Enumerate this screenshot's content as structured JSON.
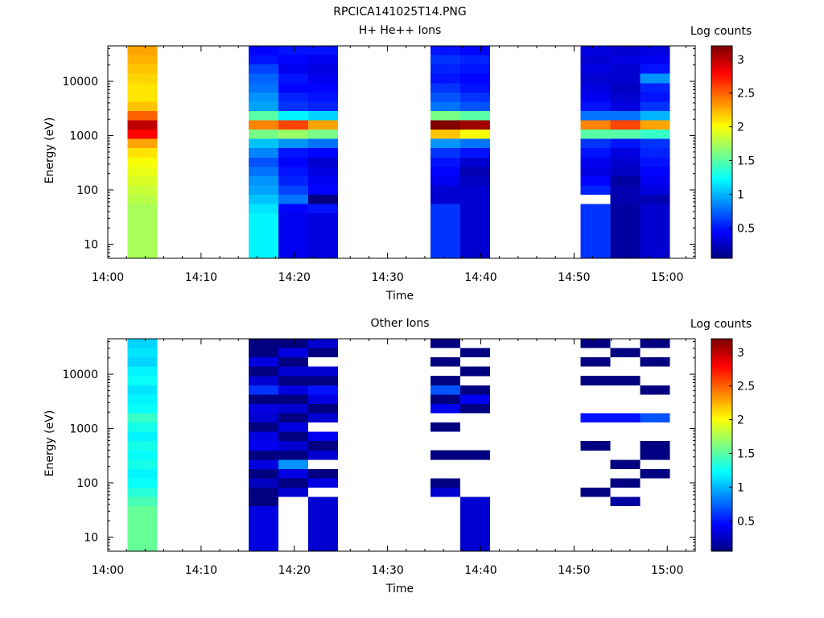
{
  "figure_title": "RPCICA141025T14.PNG",
  "chart_data": [
    {
      "type": "heatmap",
      "title": "H+ He++ Ions",
      "xlabel": "Time",
      "ylabel": "Energy (eV)",
      "x_ticks": [
        "14:00",
        "14:10",
        "14:20",
        "14:30",
        "14:40",
        "14:50",
        "15:00"
      ],
      "x_range_minutes": [
        0,
        63
      ],
      "y_scale": "log",
      "y_ticks": [
        "10",
        "100",
        "1000",
        "10000"
      ],
      "y_range": [
        5.5,
        45000
      ],
      "colorbar": {
        "label": "Log counts",
        "range": [
          0.05,
          3.2
        ],
        "ticks": [
          "0.5",
          "1",
          "1.5",
          "2",
          "2.5",
          "3"
        ]
      },
      "columns": [
        {
          "t_start": 2.1,
          "t_end": 5.3,
          "profile": [
            1.75,
            1.75,
            1.8,
            1.85,
            1.9,
            1.95,
            2.0,
            2.1,
            2.3,
            2.8,
            3.0,
            2.5,
            2.2,
            2.1,
            2.1,
            2.15,
            2.2,
            2.25,
            2.3
          ]
        },
        {
          "t_start": 15.1,
          "t_end": 18.3,
          "profile": [
            1.2,
            1.15,
            1.05,
            0.95,
            0.9,
            0.8,
            0.7,
            0.85,
            1.05,
            1.6,
            2.4,
            1.5,
            0.95,
            0.9,
            0.8,
            0.75,
            0.65,
            0.5,
            0.45
          ]
        },
        {
          "t_start": 18.3,
          "t_end": 21.5,
          "profile": [
            0.4,
            0.45,
            0.8,
            0.65,
            0.55,
            0.5,
            0.45,
            0.5,
            0.9,
            1.7,
            2.6,
            1.2,
            0.6,
            0.55,
            0.45,
            0.5,
            0.4,
            0.45,
            0.5
          ]
        },
        {
          "t_start": 21.5,
          "t_end": 24.7,
          "profile": [
            0.35,
            0.5,
            0.05,
            0.45,
            0.4,
            0.35,
            0.3,
            0.45,
            0.8,
            1.6,
            2.3,
            1.1,
            0.55,
            0.5,
            0.45,
            0.4,
            0.35,
            0.4,
            0.5
          ]
        },
        {
          "t_start": 34.6,
          "t_end": 37.8,
          "profile": [
            0.6,
            0.6,
            0.3,
            0.3,
            0.4,
            0.45,
            0.5,
            0.6,
            0.9,
            2.2,
            3.2,
            1.6,
            0.8,
            0.7,
            0.6,
            0.5,
            0.55,
            0.6,
            0.5
          ]
        },
        {
          "t_start": 37.8,
          "t_end": 41.0,
          "profile": [
            0.3,
            0.3,
            0.3,
            0.3,
            0.25,
            0.2,
            0.3,
            0.5,
            0.8,
            2.0,
            3.1,
            1.5,
            0.7,
            0.6,
            0.5,
            0.45,
            0.5,
            0.55,
            0.45
          ]
        },
        {
          "t_start": 50.7,
          "t_end": 53.9,
          "profile": [
            0.6,
            0.6,
            -1,
            0.55,
            0.45,
            0.35,
            0.4,
            0.5,
            0.6,
            1.5,
            2.4,
            0.8,
            0.5,
            0.4,
            0.35,
            0.3,
            0.35,
            0.3,
            0.35
          ]
        },
        {
          "t_start": 53.9,
          "t_end": 57.1,
          "profile": [
            0.15,
            0.15,
            0.2,
            0.2,
            0.15,
            0.25,
            0.3,
            0.35,
            0.5,
            1.5,
            2.6,
            0.8,
            0.35,
            0.3,
            0.25,
            0.3,
            0.3,
            0.35,
            0.3
          ]
        },
        {
          "t_start": 57.1,
          "t_end": 60.3,
          "profile": [
            0.3,
            0.3,
            0.2,
            0.35,
            0.4,
            0.45,
            0.5,
            0.55,
            0.6,
            1.4,
            2.3,
            1.0,
            0.6,
            0.5,
            0.55,
            0.9,
            0.5,
            0.4,
            0.35
          ]
        }
      ]
    },
    {
      "type": "heatmap",
      "title": "Other Ions",
      "xlabel": "Time",
      "ylabel": "Energy (eV)",
      "x_ticks": [
        "14:00",
        "14:10",
        "14:20",
        "14:30",
        "14:40",
        "14:50",
        "15:00"
      ],
      "x_range_minutes": [
        0,
        63
      ],
      "y_scale": "log",
      "y_ticks": [
        "10",
        "100",
        "1000",
        "10000"
      ],
      "y_range": [
        5.5,
        45000
      ],
      "colorbar": {
        "label": "Log counts",
        "range": [
          0.05,
          3.2
        ],
        "ticks": [
          "0.5",
          "1",
          "1.5",
          "2",
          "2.5",
          "3"
        ]
      },
      "columns": [
        {
          "t_start": 2.1,
          "t_end": 5.3,
          "profile": [
            1.55,
            1.45,
            1.35,
            1.25,
            1.2,
            1.3,
            1.25,
            1.3,
            1.2,
            1.3,
            1.4,
            1.25,
            1.2,
            1.15,
            1.25,
            1.2,
            1.1,
            1.15,
            1.1
          ]
        },
        {
          "t_start": 15.1,
          "t_end": 18.3,
          "profile": [
            0.35,
            0.05,
            0.05,
            0.25,
            0.05,
            0.35,
            0.05,
            0.4,
            0.35,
            0.05,
            0.3,
            0.35,
            0.05,
            0.6,
            0.3,
            0.05,
            0.35,
            0.05,
            0.05
          ]
        },
        {
          "t_start": 18.3,
          "t_end": 21.5,
          "profile": [
            -1,
            -1,
            0.3,
            0.05,
            0.35,
            0.9,
            0.05,
            0.3,
            0.05,
            0.35,
            0.05,
            0.3,
            0.05,
            0.35,
            0.05,
            0.3,
            0.05,
            0.35,
            0.05
          ]
        },
        {
          "t_start": 21.5,
          "t_end": 24.7,
          "profile": [
            0.3,
            0.3,
            -1,
            0.35,
            0.05,
            -1,
            0.3,
            0.05,
            0.4,
            -1,
            0.3,
            0.05,
            0.35,
            0.5,
            0.05,
            0.3,
            -1,
            0.05,
            0.3
          ]
        },
        {
          "t_start": 34.6,
          "t_end": 37.8,
          "profile": [
            -1,
            -1,
            0.3,
            0.05,
            -1,
            -1,
            0.05,
            -1,
            -1,
            0.05,
            -1,
            0.4,
            0.05,
            0.7,
            0.05,
            -1,
            0.05,
            -1,
            0.05
          ]
        },
        {
          "t_start": 37.8,
          "t_end": 41.0,
          "profile": [
            0.3,
            0.3,
            -1,
            -1,
            -1,
            -1,
            0.05,
            -1,
            -1,
            -1,
            -1,
            0.05,
            0.4,
            0.05,
            -1,
            0.05,
            -1,
            0.05,
            -1
          ]
        },
        {
          "t_start": 50.7,
          "t_end": 53.9,
          "profile": [
            -1,
            -1,
            0.05,
            -1,
            -1,
            -1,
            -1,
            0.05,
            -1,
            -1,
            0.5,
            -1,
            -1,
            -1,
            0.05,
            -1,
            0.05,
            -1,
            0.05
          ]
        },
        {
          "t_start": 53.9,
          "t_end": 57.1,
          "profile": [
            -1,
            0.15,
            -1,
            0.05,
            -1,
            0.05,
            -1,
            -1,
            -1,
            -1,
            0.5,
            -1,
            -1,
            -1,
            0.05,
            -1,
            -1,
            0.05,
            -1
          ]
        },
        {
          "t_start": 57.1,
          "t_end": 60.3,
          "profile": [
            -1,
            -1,
            -1,
            -1,
            0.05,
            -1,
            0.05,
            0.05,
            -1,
            -1,
            0.7,
            -1,
            -1,
            0.05,
            -1,
            -1,
            0.05,
            -1,
            0.05
          ]
        }
      ]
    }
  ]
}
